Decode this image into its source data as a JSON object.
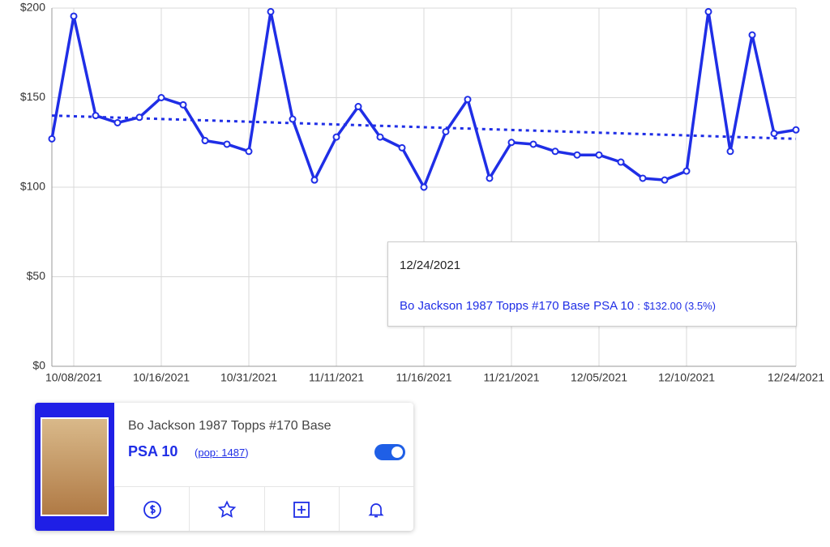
{
  "chart_data": {
    "type": "line",
    "categories": [
      null,
      "10/08/2021",
      null,
      null,
      null,
      "10/16/2021",
      null,
      null,
      null,
      "10/31/2021",
      null,
      null,
      null,
      "11/11/2021",
      null,
      null,
      null,
      "11/16/2021",
      null,
      null,
      null,
      "11/21/2021",
      null,
      null,
      null,
      "12/05/2021",
      null,
      null,
      null,
      "12/10/2021",
      null,
      null,
      null,
      null,
      "12/24/2021"
    ],
    "series": [
      {
        "name": "Bo Jackson 1987 Topps #170 Base PSA 10",
        "color": "#1f2ee6",
        "values": [
          127,
          195.5,
          140,
          136,
          139,
          150,
          146,
          126,
          124,
          120,
          198,
          138,
          104,
          128,
          145,
          128,
          122,
          100,
          131,
          149,
          105,
          125,
          124,
          120,
          118,
          118,
          114,
          105,
          104,
          109,
          198,
          120,
          185,
          130,
          132
        ]
      }
    ],
    "trendline": [
      140,
      127
    ],
    "ylim": [
      0,
      200
    ],
    "yticks": [
      {
        "value": 0,
        "label": "$0"
      },
      {
        "value": 50,
        "label": "$50"
      },
      {
        "value": 100,
        "label": "$100"
      },
      {
        "value": 150,
        "label": "$150"
      },
      {
        "value": 200,
        "label": "$200"
      }
    ],
    "grid": true,
    "tooltip": {
      "date": "12/24/2021",
      "separator": ":",
      "value": "$132.00 (3.5%)"
    }
  },
  "card": {
    "title": "Bo Jackson 1987 Topps #170 Base",
    "grade": "PSA 10",
    "pop": "pop: 1487"
  }
}
